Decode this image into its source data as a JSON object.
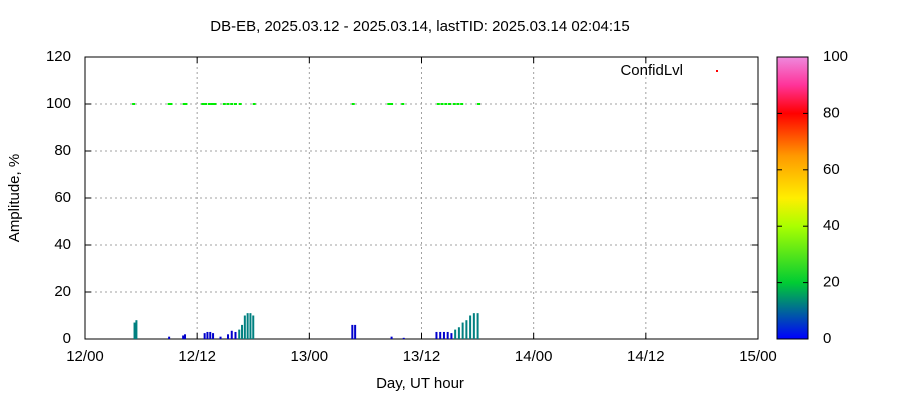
{
  "chart_data": {
    "type": "scatter",
    "title": "DB-EB, 2025.03.12 - 2025.03.14, lastTID: 2025.03.14 02:04:15",
    "x_label": "Day, UT hour",
    "y_label": "Amplitude, %",
    "xlim": [
      0,
      72
    ],
    "xticks": [
      {
        "value": 0,
        "label": "12/00"
      },
      {
        "value": 12,
        "label": "12/12"
      },
      {
        "value": 24,
        "label": "13/00"
      },
      {
        "value": 36,
        "label": "13/12"
      },
      {
        "value": 48,
        "label": "14/00"
      },
      {
        "value": 60,
        "label": "14/12"
      },
      {
        "value": 72,
        "label": "15/00"
      }
    ],
    "ylim": [
      0,
      120
    ],
    "yticks": [
      0,
      20,
      40,
      60,
      80,
      100,
      120
    ],
    "grid": true,
    "legend": "top-right",
    "legend_color": "#ff0000",
    "series": [
      {
        "name": "ConfidLvl",
        "color": "#00ee00",
        "x": [
          5.2,
          9.0,
          9.2,
          10.6,
          10.8,
          12.6,
          12.9,
          13.3,
          13.6,
          13.9,
          14.9,
          15.3,
          15.7,
          16.1,
          16.6,
          18.1,
          28.7,
          32.5,
          32.8,
          34.0,
          37.8,
          38.2,
          38.6,
          39.0,
          39.5,
          39.9,
          40.3,
          42.1
        ],
        "values": [
          100,
          100,
          100,
          100,
          100,
          100,
          100,
          100,
          100,
          100,
          100,
          100,
          100,
          100,
          100,
          100,
          100,
          100,
          100,
          100,
          100,
          100,
          100,
          100,
          100,
          100,
          100,
          100
        ]
      },
      {
        "x": [
          5.3,
          5.5,
          9.0,
          10.5,
          10.7,
          12.8,
          13.1,
          13.4,
          13.7,
          14.5,
          15.3,
          15.7,
          16.1,
          16.5,
          16.8,
          17.1,
          17.4,
          17.7,
          18.0,
          28.6,
          28.9,
          32.8,
          34.1,
          37.6,
          38.0,
          38.4,
          38.8,
          39.2,
          39.6,
          40.0,
          40.4,
          40.8,
          41.2,
          41.6,
          42.0
        ],
        "values": [
          7,
          8,
          1,
          1.5,
          2,
          2.5,
          3,
          3,
          2.5,
          1,
          2,
          3.5,
          3,
          4,
          6,
          10,
          11,
          11,
          10,
          6,
          6,
          1,
          0.5,
          3,
          3,
          3,
          3,
          2.5,
          4,
          5,
          7,
          8,
          10,
          11,
          11
        ],
        "colors": [
          "#008080",
          "#008080",
          "#0000cc",
          "#0000cc",
          "#0000cc",
          "#0000cc",
          "#0000cc",
          "#0000cc",
          "#0000cc",
          "#0000cc",
          "#0000cc",
          "#0000cc",
          "#0000cc",
          "#008080",
          "#008080",
          "#008080",
          "#008080",
          "#008080",
          "#008080",
          "#0000cc",
          "#0000cc",
          "#0000cc",
          "#0000cc",
          "#0000cc",
          "#0000cc",
          "#0000cc",
          "#0000cc",
          "#0000cc",
          "#008080",
          "#008080",
          "#008080",
          "#008080",
          "#008080",
          "#008080",
          "#008080"
        ]
      }
    ],
    "colorbar": {
      "lim": [
        0,
        100
      ],
      "ticks": [
        0,
        20,
        40,
        60,
        80,
        100
      ]
    }
  }
}
